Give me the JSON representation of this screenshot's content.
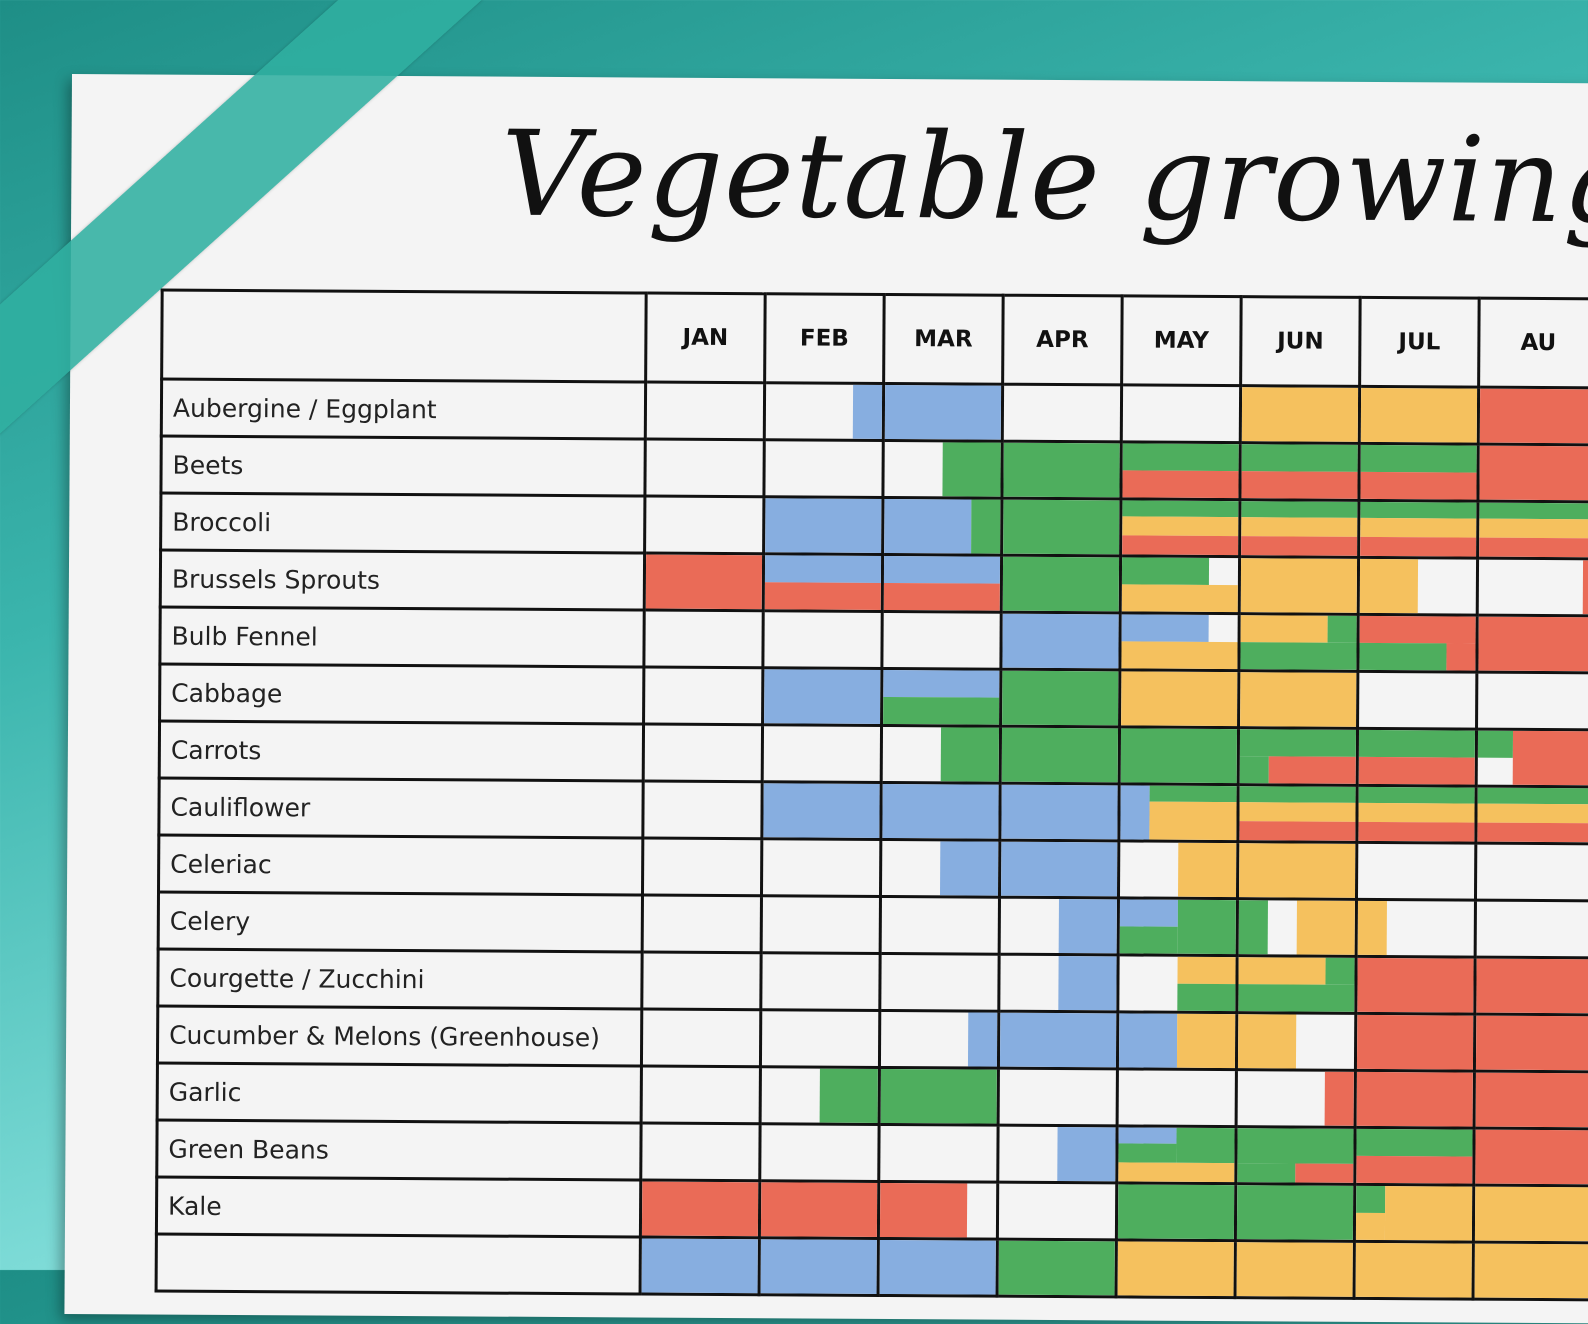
{
  "title": "Vegetable growing pla",
  "colors": {
    "blue": "#87aee0",
    "green": "#4eae5e",
    "red": "#ea6b57",
    "yellow": "#f5c15e"
  },
  "months": [
    "JAN",
    "FEB",
    "MAR",
    "APR",
    "MAY",
    "JUN",
    "JUL",
    "AU"
  ],
  "rows": [
    {
      "name": "Aubergine / Eggplant",
      "cells": [
        [],
        [
          [
            "blue",
            0.75,
            1,
            0,
            1
          ]
        ],
        [
          [
            "blue",
            0,
            1,
            0,
            1
          ]
        ],
        [],
        [],
        [
          [
            "yellow",
            0,
            1,
            0,
            1
          ]
        ],
        [
          [
            "yellow",
            0,
            1,
            0,
            1
          ]
        ],
        [
          [
            "red",
            0,
            1,
            0,
            1
          ]
        ]
      ]
    },
    {
      "name": "Beets",
      "cells": [
        [],
        [],
        [
          [
            "green",
            0.5,
            1,
            0,
            1
          ]
        ],
        [
          [
            "green",
            0,
            1,
            0,
            1
          ]
        ],
        [
          [
            "green",
            0,
            1,
            0,
            0.5
          ],
          [
            "red",
            0,
            1,
            0.5,
            1
          ]
        ],
        [
          [
            "green",
            0,
            1,
            0,
            0.5
          ],
          [
            "red",
            0,
            1,
            0.5,
            1
          ]
        ],
        [
          [
            "green",
            0,
            1,
            0,
            0.5
          ],
          [
            "red",
            0,
            1,
            0.5,
            1
          ]
        ],
        [
          [
            "red",
            0,
            1,
            0,
            1
          ]
        ]
      ]
    },
    {
      "name": "Broccoli",
      "cells": [
        [],
        [
          [
            "blue",
            0,
            1,
            0,
            1
          ]
        ],
        [
          [
            "blue",
            0,
            0.75,
            0,
            1
          ],
          [
            "green",
            0.75,
            1,
            0,
            1
          ]
        ],
        [
          [
            "green",
            0,
            1,
            0,
            1
          ]
        ],
        [
          [
            "green",
            0,
            1,
            0,
            0.3
          ],
          [
            "yellow",
            0,
            1,
            0.3,
            0.65
          ],
          [
            "red",
            0,
            1,
            0.65,
            1
          ]
        ],
        [
          [
            "green",
            0,
            1,
            0,
            0.3
          ],
          [
            "yellow",
            0,
            1,
            0.3,
            0.65
          ],
          [
            "red",
            0,
            1,
            0.65,
            1
          ]
        ],
        [
          [
            "green",
            0,
            1,
            0,
            0.3
          ],
          [
            "yellow",
            0,
            1,
            0.3,
            0.65
          ],
          [
            "red",
            0,
            1,
            0.65,
            1
          ]
        ],
        [
          [
            "green",
            0,
            1,
            0,
            0.3
          ],
          [
            "yellow",
            0,
            1,
            0.3,
            0.65
          ],
          [
            "red",
            0,
            1,
            0.65,
            1
          ]
        ]
      ]
    },
    {
      "name": "Brussels Sprouts",
      "cells": [
        [
          [
            "red",
            0,
            1,
            0,
            1
          ]
        ],
        [
          [
            "blue",
            0,
            1,
            0,
            0.5
          ],
          [
            "red",
            0,
            1,
            0.5,
            1
          ]
        ],
        [
          [
            "blue",
            0,
            1,
            0,
            0.5
          ],
          [
            "red",
            0,
            1,
            0.5,
            1
          ]
        ],
        [
          [
            "green",
            0,
            1,
            0,
            1
          ]
        ],
        [
          [
            "green",
            0,
            0.75,
            0,
            0.5
          ],
          [
            "yellow",
            0,
            1,
            0.5,
            1
          ]
        ],
        [
          [
            "yellow",
            0,
            1,
            0,
            1
          ]
        ],
        [
          [
            "yellow",
            0,
            0.5,
            0,
            1
          ]
        ],
        [
          [
            "red",
            0.9,
            1,
            0,
            1
          ]
        ]
      ]
    },
    {
      "name": "Bulb Fennel",
      "cells": [
        [],
        [],
        [],
        [
          [
            "blue",
            0,
            1,
            0,
            1
          ]
        ],
        [
          [
            "blue",
            0,
            0.75,
            0,
            0.5
          ],
          [
            "yellow",
            0,
            1,
            0.5,
            1
          ]
        ],
        [
          [
            "yellow",
            0,
            0.75,
            0,
            0.5
          ],
          [
            "green",
            0.75,
            1,
            0,
            0.5
          ],
          [
            "green",
            0,
            1,
            0.5,
            1
          ]
        ],
        [
          [
            "red",
            0,
            1,
            0,
            0.5
          ],
          [
            "green",
            0,
            0.75,
            0.5,
            1
          ],
          [
            "red",
            0.75,
            1,
            0.5,
            1
          ]
        ],
        [
          [
            "red",
            0,
            1,
            0,
            1
          ]
        ]
      ]
    },
    {
      "name": "Cabbage",
      "cells": [
        [],
        [
          [
            "blue",
            0,
            1,
            0,
            1
          ]
        ],
        [
          [
            "blue",
            0,
            1,
            0,
            0.5
          ],
          [
            "green",
            0,
            1,
            0.5,
            1
          ]
        ],
        [
          [
            "green",
            0,
            1,
            0,
            1
          ]
        ],
        [
          [
            "yellow",
            0,
            1,
            0,
            1
          ]
        ],
        [
          [
            "yellow",
            0,
            1,
            0,
            1
          ]
        ],
        [],
        []
      ]
    },
    {
      "name": "Carrots",
      "cells": [
        [],
        [],
        [
          [
            "green",
            0.5,
            1,
            0,
            1
          ]
        ],
        [
          [
            "green",
            0,
            1,
            0,
            1
          ]
        ],
        [
          [
            "green",
            0,
            1,
            0,
            1
          ]
        ],
        [
          [
            "green",
            0,
            1,
            0,
            0.5
          ],
          [
            "green",
            0,
            0.25,
            0.5,
            1
          ],
          [
            "red",
            0.25,
            1,
            0.5,
            1
          ]
        ],
        [
          [
            "green",
            0,
            1,
            0,
            0.5
          ],
          [
            "red",
            0,
            1,
            0.5,
            1
          ]
        ],
        [
          [
            "green",
            0,
            0.3,
            0,
            0.5
          ],
          [
            "red",
            0.3,
            1,
            0,
            1
          ]
        ]
      ]
    },
    {
      "name": "Cauliflower",
      "cells": [
        [],
        [
          [
            "blue",
            0,
            1,
            0,
            1
          ]
        ],
        [
          [
            "blue",
            0,
            1,
            0,
            1
          ]
        ],
        [
          [
            "blue",
            0,
            1,
            0,
            1
          ]
        ],
        [
          [
            "blue",
            0,
            0.25,
            0,
            1
          ],
          [
            "green",
            0.25,
            1,
            0,
            0.3
          ],
          [
            "yellow",
            0.25,
            1,
            0.3,
            1
          ]
        ],
        [
          [
            "green",
            0,
            1,
            0,
            0.3
          ],
          [
            "yellow",
            0,
            1,
            0.3,
            0.65
          ],
          [
            "red",
            0,
            1,
            0.65,
            1
          ]
        ],
        [
          [
            "green",
            0,
            1,
            0,
            0.3
          ],
          [
            "yellow",
            0,
            1,
            0.3,
            0.65
          ],
          [
            "red",
            0,
            1,
            0.65,
            1
          ]
        ],
        [
          [
            "green",
            0,
            1,
            0,
            0.3
          ],
          [
            "yellow",
            0,
            1,
            0.3,
            0.65
          ],
          [
            "red",
            0,
            1,
            0.65,
            1
          ]
        ]
      ]
    },
    {
      "name": "Celeriac",
      "cells": [
        [],
        [],
        [
          [
            "blue",
            0.5,
            1,
            0,
            1
          ]
        ],
        [
          [
            "blue",
            0,
            1,
            0,
            1
          ]
        ],
        [
          [
            "yellow",
            0.5,
            1,
            0,
            1
          ]
        ],
        [
          [
            "yellow",
            0,
            1,
            0,
            1
          ]
        ],
        [],
        []
      ]
    },
    {
      "name": "Celery",
      "cells": [
        [],
        [],
        [],
        [
          [
            "blue",
            0.5,
            1,
            0,
            1
          ]
        ],
        [
          [
            "blue",
            0,
            0.5,
            0,
            0.5
          ],
          [
            "green",
            0.5,
            1,
            0,
            1
          ],
          [
            "green",
            0,
            0.5,
            0.5,
            1
          ]
        ],
        [
          [
            "green",
            0,
            0.25,
            0,
            1
          ],
          [
            "yellow",
            0.5,
            1,
            0,
            1
          ]
        ],
        [
          [
            "yellow",
            0,
            0.25,
            0,
            1
          ]
        ],
        []
      ]
    },
    {
      "name": "Courgette / Zucchini",
      "cells": [
        [],
        [],
        [],
        [
          [
            "blue",
            0.5,
            1,
            0,
            1
          ]
        ],
        [
          [
            "yellow",
            0.5,
            1,
            0,
            0.5
          ],
          [
            "green",
            0.5,
            1,
            0.5,
            1
          ]
        ],
        [
          [
            "yellow",
            0,
            0.75,
            0,
            0.5
          ],
          [
            "green",
            0.75,
            1,
            0,
            0.5
          ],
          [
            "green",
            0,
            1,
            0.5,
            1
          ]
        ],
        [
          [
            "red",
            0,
            1,
            0,
            1
          ]
        ],
        [
          [
            "red",
            0,
            1,
            0,
            1
          ]
        ]
      ]
    },
    {
      "name": "Cucumber & Melons (Greenhouse)",
      "cells": [
        [],
        [],
        [
          [
            "blue",
            0.75,
            1,
            0,
            1
          ]
        ],
        [
          [
            "blue",
            0,
            1,
            0,
            1
          ]
        ],
        [
          [
            "blue",
            0,
            0.5,
            0,
            1
          ],
          [
            "yellow",
            0.5,
            1,
            0,
            1
          ]
        ],
        [
          [
            "yellow",
            0,
            0.5,
            0,
            1
          ]
        ],
        [
          [
            "red",
            0,
            1,
            0,
            1
          ]
        ],
        [
          [
            "red",
            0,
            1,
            0,
            1
          ]
        ]
      ]
    },
    {
      "name": "Garlic",
      "cells": [
        [],
        [
          [
            "green",
            0.5,
            1,
            0,
            1
          ]
        ],
        [
          [
            "green",
            0,
            1,
            0,
            1
          ]
        ],
        [],
        [],
        [
          [
            "red",
            0.75,
            1,
            0,
            1
          ]
        ],
        [
          [
            "red",
            0,
            1,
            0,
            1
          ]
        ],
        [
          [
            "red",
            0,
            1,
            0,
            1
          ]
        ]
      ]
    },
    {
      "name": "Green Beans",
      "cells": [
        [],
        [],
        [],
        [
          [
            "blue",
            0.5,
            1,
            0,
            1
          ]
        ],
        [
          [
            "blue",
            0,
            0.5,
            0,
            0.3
          ],
          [
            "green",
            0.5,
            1,
            0,
            0.65
          ],
          [
            "green",
            0,
            0.5,
            0.3,
            0.65
          ],
          [
            "yellow",
            0,
            1,
            0.65,
            1
          ]
        ],
        [
          [
            "green",
            0,
            1,
            0,
            0.65
          ],
          [
            "green",
            0,
            0.5,
            0.65,
            1
          ],
          [
            "red",
            0.5,
            1,
            0.65,
            1
          ]
        ],
        [
          [
            "green",
            0,
            1,
            0,
            0.5
          ],
          [
            "red",
            0,
            1,
            0.5,
            1
          ]
        ],
        [
          [
            "red",
            0,
            1,
            0,
            1
          ]
        ]
      ]
    },
    {
      "name": "Kale",
      "cells": [
        [
          [
            "red",
            0,
            1,
            0,
            1
          ]
        ],
        [
          [
            "red",
            0,
            1,
            0,
            1
          ]
        ],
        [
          [
            "red",
            0,
            0.75,
            0,
            1
          ]
        ],
        [],
        [
          [
            "green",
            0,
            1,
            0,
            1
          ]
        ],
        [
          [
            "green",
            0,
            1,
            0,
            1
          ]
        ],
        [
          [
            "green",
            0,
            0.25,
            0,
            0.5
          ],
          [
            "yellow",
            0.25,
            1,
            0,
            1
          ],
          [
            "yellow",
            0,
            0.25,
            0.5,
            1
          ]
        ],
        [
          [
            "yellow",
            0,
            1,
            0,
            1
          ]
        ]
      ]
    },
    {
      "name": "",
      "cells": [
        [
          [
            "blue",
            0,
            1,
            0,
            1
          ]
        ],
        [
          [
            "blue",
            0,
            1,
            0,
            1
          ]
        ],
        [
          [
            "blue",
            0,
            1,
            0,
            1
          ]
        ],
        [
          [
            "green",
            0,
            1,
            0,
            1
          ]
        ],
        [
          [
            "yellow",
            0,
            1,
            0,
            1
          ]
        ],
        [
          [
            "yellow",
            0,
            1,
            0,
            1
          ]
        ],
        [
          [
            "yellow",
            0,
            1,
            0,
            1
          ]
        ],
        [
          [
            "yellow",
            0,
            1,
            0,
            1
          ]
        ]
      ]
    }
  ]
}
